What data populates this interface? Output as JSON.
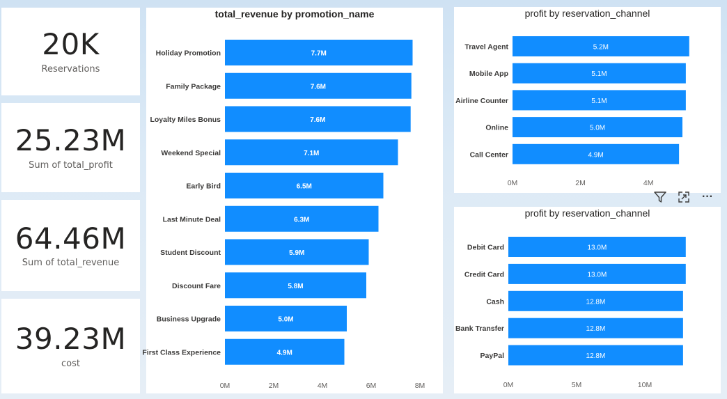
{
  "kpis": [
    {
      "value": "20K",
      "label": "Reservations"
    },
    {
      "value": "25.23M",
      "label": "Sum of total_profit"
    },
    {
      "value": "64.46M",
      "label": "Sum of total_revenue"
    },
    {
      "value": "39.23M",
      "label": "cost"
    }
  ],
  "colors": {
    "bar": "#118dff",
    "background": "#dceaf6"
  },
  "toolbar": {
    "filter_icon": "filter-icon",
    "focus_icon": "focus-mode-icon",
    "more_icon": "more-options-icon",
    "more_label": "···"
  },
  "chart_data": [
    {
      "type": "bar",
      "orientation": "horizontal",
      "title": "total_revenue by promotion_name",
      "categories": [
        "Holiday Promotion",
        "Family Package",
        "Loyalty Miles Bonus",
        "Weekend Special",
        "Early Bird",
        "Last Minute Deal",
        "Student Discount",
        "Discount Fare",
        "Business Upgrade",
        "First Class Experience"
      ],
      "values": [
        7.7,
        7.65,
        7.62,
        7.1,
        6.5,
        6.3,
        5.9,
        5.8,
        5.0,
        4.9
      ],
      "data_labels": [
        "7.7M",
        "7.6M",
        "7.6M",
        "7.1M",
        "6.5M",
        "6.3M",
        "5.9M",
        "5.8M",
        "5.0M",
        "4.9M"
      ],
      "ticks": [
        "0M",
        "2M",
        "4M",
        "6M",
        "8M"
      ],
      "xlim": [
        0,
        8
      ],
      "unit": "M",
      "grid": false
    },
    {
      "type": "bar",
      "orientation": "horizontal",
      "title": "profit by reservation_channel",
      "categories": [
        "Travel Agent",
        "Mobile App",
        "Airline Counter",
        "Online",
        "Call Center"
      ],
      "values": [
        5.2,
        5.1,
        5.1,
        5.0,
        4.9
      ],
      "data_labels": [
        "5.2M",
        "5.1M",
        "5.1M",
        "5.0M",
        "4.9M"
      ],
      "ticks": [
        "0M",
        "2M",
        "4M"
      ],
      "xlim": [
        0,
        5.2
      ],
      "unit": "M",
      "grid": false
    },
    {
      "type": "bar",
      "orientation": "horizontal",
      "title": "profit by reservation_channel",
      "categories": [
        "Debit Card",
        "Credit Card",
        "Cash",
        "Bank Transfer",
        "PayPal"
      ],
      "values": [
        13.0,
        13.0,
        12.8,
        12.8,
        12.8
      ],
      "data_labels": [
        "13.0M",
        "13.0M",
        "12.8M",
        "12.8M",
        "12.8M"
      ],
      "ticks": [
        "0M",
        "5M",
        "10M"
      ],
      "xlim": [
        0,
        13.0
      ],
      "unit": "M",
      "grid": false
    }
  ]
}
